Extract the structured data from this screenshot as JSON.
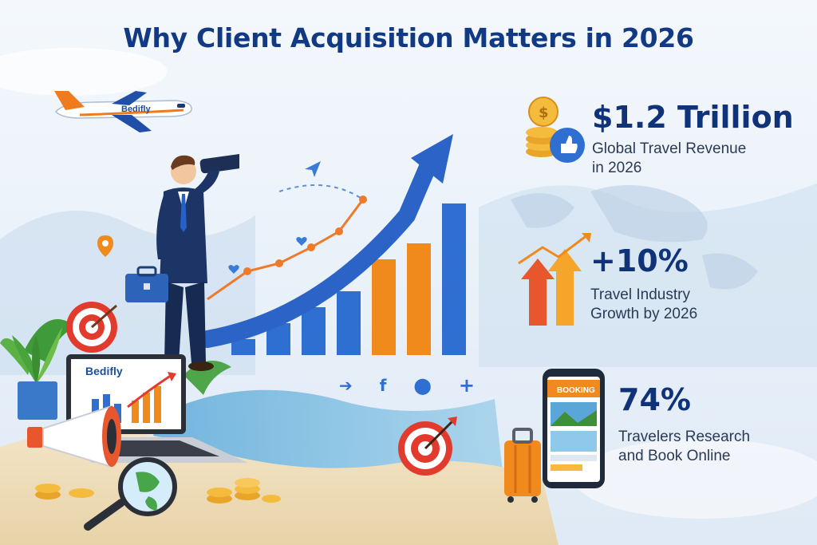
{
  "title": "Why Client Acquisition Matters in 2026",
  "airplane": {
    "brand": "Bedifly"
  },
  "laptop": {
    "brand": "Bedifly"
  },
  "phone": {
    "screen_label": "BOOKING"
  },
  "stats": [
    {
      "value": "$1.2 Trillion",
      "label_line1": "Global Travel Revenue",
      "label_line2": "in 2026",
      "icon": "coins-thumbs-up-icon"
    },
    {
      "value": "+10%",
      "label_line1": "Travel Industry",
      "label_line2": "Growth by 2026",
      "icon": "growth-arrows-icon"
    },
    {
      "value": "74%",
      "label_line1": "Travelers Research",
      "label_line2": "and Book Online",
      "icon": "phone-suitcase-icon"
    }
  ],
  "chart_data": {
    "type": "bar",
    "categories": [
      "1",
      "2",
      "3",
      "4",
      "5",
      "6",
      "7"
    ],
    "values": [
      1,
      2,
      3,
      4,
      6,
      7,
      9.5
    ],
    "bar_colors": [
      "#2f6fd1",
      "#2f6fd1",
      "#2f6fd1",
      "#2f6fd1",
      "#f08a1c",
      "#f08a1c",
      "#2f6fd1"
    ],
    "ylim": [
      0,
      10
    ],
    "grid": false
  },
  "colors": {
    "title": "#123a84",
    "blue": "#2f6fd1",
    "orange": "#f08a1c",
    "navy": "#0f3279"
  }
}
